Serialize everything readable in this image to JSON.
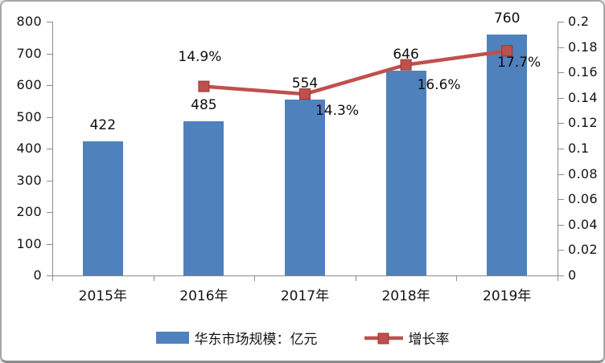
{
  "chart_data": {
    "type": "bar+line",
    "categories": [
      "2015年",
      "2016年",
      "2017年",
      "2018年",
      "2019年"
    ],
    "series": [
      {
        "name": "华东市场规模：亿元",
        "type": "bar",
        "axis": "left",
        "color": "#4F81BD",
        "values": [
          422,
          485,
          554,
          646,
          760
        ],
        "labels": [
          "422",
          "485",
          "554",
          "646",
          "760"
        ]
      },
      {
        "name": "增长率",
        "type": "line",
        "axis": "right",
        "color": "#C0504D",
        "marker_border": "#943634",
        "values": [
          null,
          0.149,
          0.143,
          0.166,
          0.177
        ],
        "labels": [
          null,
          "14.9%",
          "14.3%",
          "16.6%",
          "17.7%"
        ]
      }
    ],
    "left_axis": {
      "min": 0,
      "max": 800,
      "step": 100,
      "ticks": [
        "800",
        "700",
        "600",
        "500",
        "400",
        "300",
        "200",
        "100",
        "0"
      ]
    },
    "right_axis": {
      "min": 0,
      "max": 0.2,
      "step": 0.02,
      "ticks": [
        "0.2",
        "0.18",
        "0.16",
        "0.14",
        "0.12",
        "0.1",
        "0.08",
        "0.06",
        "0.04",
        "0.02",
        "0"
      ]
    },
    "legend": [
      {
        "label": "华东市场规模：亿元",
        "swatch": "bar",
        "color": "#4F81BD"
      },
      {
        "label": "增长率",
        "swatch": "line",
        "color": "#C0504D"
      }
    ],
    "grid": false,
    "legend_position": "bottom",
    "title": ""
  }
}
